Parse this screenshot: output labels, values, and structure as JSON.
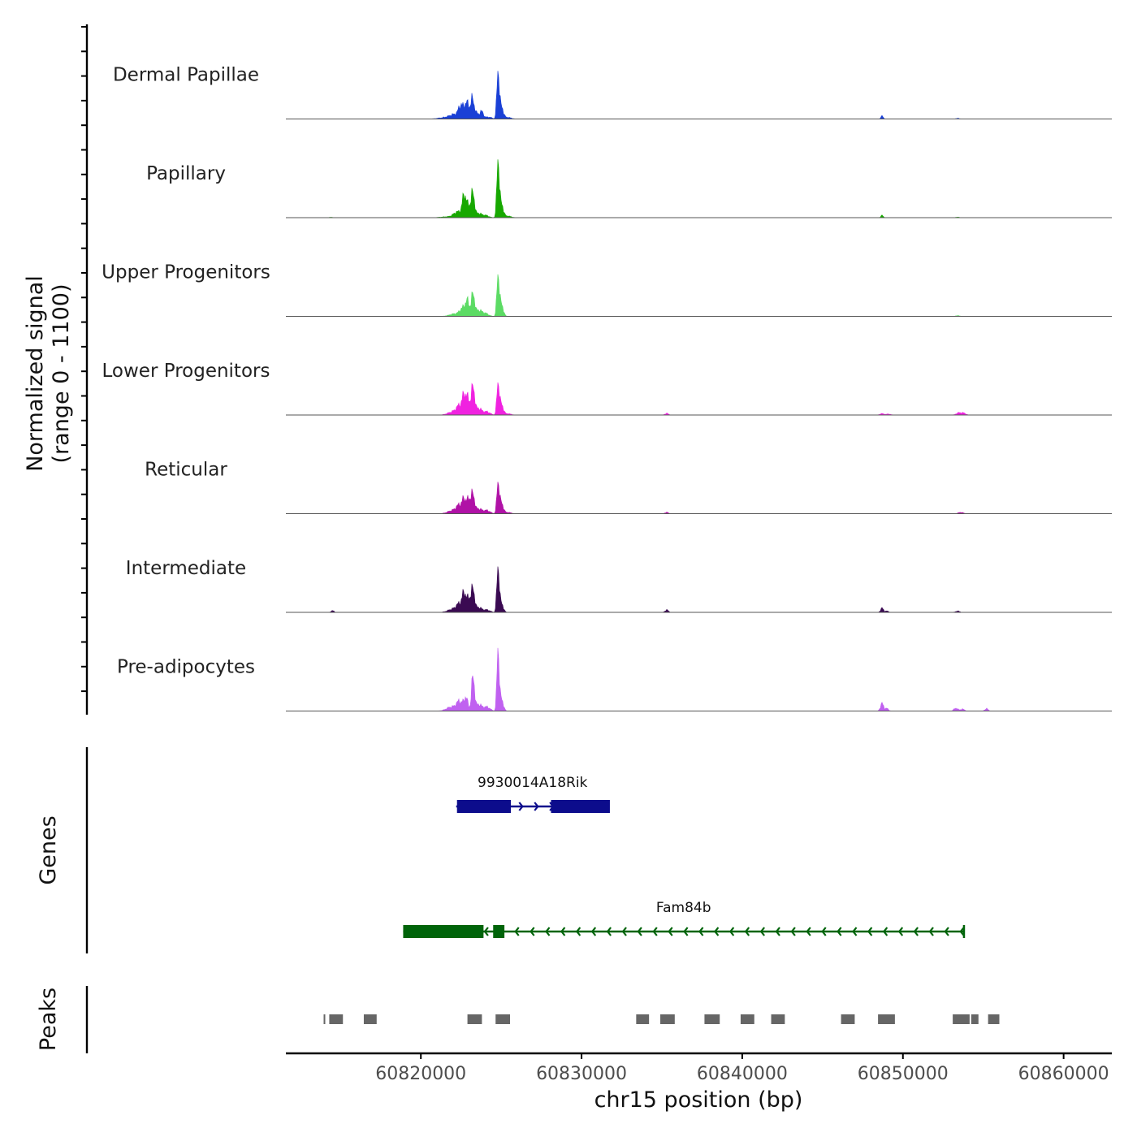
{
  "chart_data": {
    "type": "area",
    "title": "",
    "ylabel_line1": "Normalized signal",
    "ylabel_line2": "(range 0 - 1100)",
    "ylim": [
      0,
      1100
    ],
    "xlabel": "chr15 position (bp)",
    "xlim": [
      60811600,
      60863000
    ],
    "x_ticks": [
      {
        "value": 60820000,
        "label": "60820000"
      },
      {
        "value": 60830000,
        "label": "60830000"
      },
      {
        "value": 60840000,
        "label": "60840000"
      },
      {
        "value": 60850000,
        "label": "60850000"
      },
      {
        "value": 60860000,
        "label": "60860000"
      }
    ],
    "series": [
      {
        "name": "Dermal Papillae",
        "color": "#1a40d6",
        "peaks": [
          [
            60821500,
            8,
            400
          ],
          [
            60822100,
            25,
            300
          ],
          [
            60822500,
            75,
            150
          ],
          [
            60822850,
            95,
            130
          ],
          [
            60823200,
            110,
            120
          ],
          [
            60823500,
            30,
            200
          ],
          [
            60823800,
            35,
            100
          ],
          [
            60824200,
            12,
            200
          ],
          [
            60824800,
            300,
            70
          ],
          [
            60825000,
            80,
            120
          ],
          [
            60825400,
            10,
            200
          ],
          [
            60848700,
            18,
            70
          ],
          [
            60853400,
            4,
            100
          ]
        ]
      },
      {
        "name": "Papillary",
        "color": "#17a800",
        "peaks": [
          [
            60821600,
            5,
            400
          ],
          [
            60822300,
            35,
            250
          ],
          [
            60822700,
            125,
            120
          ],
          [
            60823000,
            70,
            150
          ],
          [
            60823250,
            135,
            100
          ],
          [
            60823600,
            25,
            150
          ],
          [
            60824000,
            15,
            200
          ],
          [
            60824800,
            365,
            70
          ],
          [
            60825000,
            90,
            120
          ],
          [
            60825400,
            10,
            200
          ],
          [
            60814400,
            3,
            80
          ],
          [
            60848700,
            14,
            70
          ],
          [
            60853400,
            3,
            100
          ]
        ]
      },
      {
        "name": "Upper Progenitors",
        "color": "#5cdb64",
        "peaks": [
          [
            60822100,
            15,
            300
          ],
          [
            60822600,
            45,
            180
          ],
          [
            60822900,
            85,
            130
          ],
          [
            60823250,
            135,
            100
          ],
          [
            60823600,
            35,
            180
          ],
          [
            60824000,
            18,
            200
          ],
          [
            60824800,
            260,
            70
          ],
          [
            60825000,
            80,
            120
          ],
          [
            60853400,
            4,
            120
          ]
        ]
      },
      {
        "name": "Lower Progenitors",
        "color": "#f022e0",
        "peaks": [
          [
            60822000,
            20,
            300
          ],
          [
            60822400,
            50,
            180
          ],
          [
            60822700,
            110,
            120
          ],
          [
            60822950,
            90,
            120
          ],
          [
            60823250,
            170,
            100
          ],
          [
            60823600,
            40,
            180
          ],
          [
            60824100,
            20,
            200
          ],
          [
            60824800,
            200,
            70
          ],
          [
            60825000,
            70,
            120
          ],
          [
            60825400,
            8,
            200
          ],
          [
            60835300,
            10,
            100
          ],
          [
            60848700,
            8,
            130
          ],
          [
            60849100,
            6,
            130
          ],
          [
            60853500,
            14,
            160
          ],
          [
            60853800,
            10,
            120
          ]
        ]
      },
      {
        "name": "Reticular",
        "color": "#b012a6",
        "peaks": [
          [
            60822000,
            20,
            300
          ],
          [
            60822400,
            45,
            180
          ],
          [
            60822700,
            80,
            120
          ],
          [
            60823000,
            90,
            120
          ],
          [
            60823250,
            110,
            100
          ],
          [
            60823600,
            30,
            180
          ],
          [
            60824100,
            20,
            200
          ],
          [
            60824800,
            195,
            70
          ],
          [
            60825000,
            70,
            120
          ],
          [
            60825400,
            8,
            200
          ],
          [
            60835300,
            8,
            100
          ],
          [
            60853600,
            8,
            150
          ]
        ]
      },
      {
        "name": "Intermediate",
        "color": "#3a0a52",
        "peaks": [
          [
            60822000,
            20,
            300
          ],
          [
            60822400,
            45,
            180
          ],
          [
            60822700,
            110,
            120
          ],
          [
            60823000,
            85,
            120
          ],
          [
            60823250,
            135,
            100
          ],
          [
            60823600,
            30,
            180
          ],
          [
            60824100,
            15,
            200
          ],
          [
            60824800,
            290,
            70
          ],
          [
            60825000,
            60,
            120
          ],
          [
            60814500,
            12,
            80
          ],
          [
            60835300,
            15,
            100
          ],
          [
            60848700,
            25,
            90
          ],
          [
            60849000,
            8,
            100
          ],
          [
            60853400,
            8,
            120
          ]
        ]
      },
      {
        "name": "Pre-adipocytes",
        "color": "#c061f0",
        "peaks": [
          [
            60821900,
            25,
            300
          ],
          [
            60822400,
            55,
            180
          ],
          [
            60822800,
            80,
            130
          ],
          [
            60823250,
            210,
            90
          ],
          [
            60823600,
            40,
            180
          ],
          [
            60824100,
            25,
            200
          ],
          [
            60824800,
            400,
            65
          ],
          [
            60825000,
            80,
            120
          ],
          [
            60848700,
            45,
            100
          ],
          [
            60849000,
            15,
            100
          ],
          [
            60853300,
            18,
            120
          ],
          [
            60853700,
            12,
            120
          ],
          [
            60855200,
            14,
            100
          ]
        ]
      }
    ],
    "genes": [
      {
        "name": "9930014A18Rik",
        "color": "#0c0c8c",
        "strand": "+",
        "start": 60822200,
        "end": 60831700,
        "exons": [
          [
            60822250,
            60825600
          ],
          [
            60828100,
            60831700
          ]
        ]
      },
      {
        "name": "Fam84b",
        "color": "#00640a",
        "strand": "-",
        "start": 60818900,
        "end": 60853800,
        "exons": [
          [
            60818900,
            60823900
          ],
          [
            60824500,
            60825200
          ]
        ]
      }
    ],
    "peaks_track": [
      [
        60813950,
        60814050
      ],
      [
        60814300,
        60815150
      ],
      [
        60816450,
        60817250
      ],
      [
        60822900,
        60823800
      ],
      [
        60824650,
        60825550
      ],
      [
        60833400,
        60834200
      ],
      [
        60834900,
        60835800
      ],
      [
        60837650,
        60838600
      ],
      [
        60839900,
        60840750
      ],
      [
        60841800,
        60842650
      ],
      [
        60846150,
        60847000
      ],
      [
        60848450,
        60849500
      ],
      [
        60853100,
        60854150
      ],
      [
        60854250,
        60854700
      ],
      [
        60855300,
        60856000
      ]
    ],
    "track_titles": {
      "genes": "Genes",
      "peaks": "Peaks"
    }
  }
}
